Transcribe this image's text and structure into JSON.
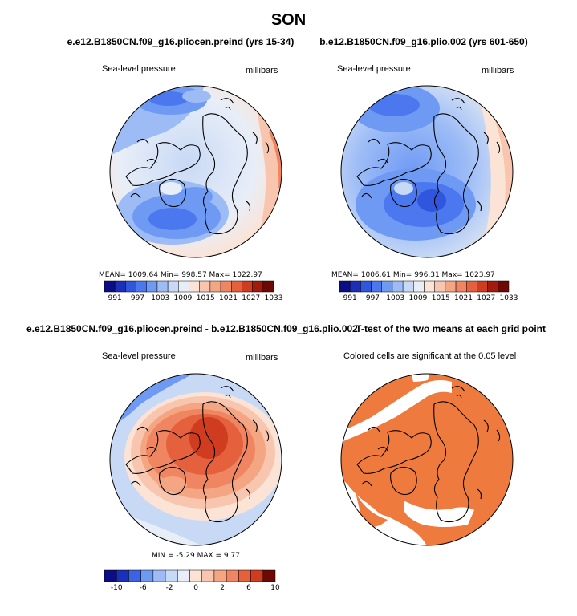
{
  "page_title": "SON",
  "panels": [
    {
      "title": "e.e12.B1850CN.f09_g16.pliocen.preind (yrs 15-34)",
      "variable": "Sea-level pressure",
      "units": "millibars",
      "stats": "MEAN= 1009.64   Min= 998.57   Max= 1022.97",
      "colorbar_labels": [
        "991",
        "997",
        "1003",
        "1009",
        "1015",
        "1021",
        "1027",
        "1033"
      ]
    },
    {
      "title": "b.e12.B1850CN.f09_g16.plio.002 (yrs 601-650)",
      "variable": "Sea-level pressure",
      "units": "millibars",
      "stats": "MEAN= 1006.61   Min= 996.31   Max= 1023.97",
      "colorbar_labels": [
        "991",
        "997",
        "1003",
        "1009",
        "1015",
        "1021",
        "1027",
        "1033"
      ]
    },
    {
      "title": "e.e12.B1850CN.f09_g16.pliocen.preind - b.e12.B1850CN.f09_g16.plio.002",
      "variable": "Sea-level pressure",
      "units": "millibars",
      "stats": "MIN =  -5.29  MAX =  9.77",
      "colorbar_labels": [
        "-10",
        "-6",
        "-2",
        "0",
        "2",
        "6",
        "10"
      ]
    },
    {
      "title": "T-test of the two means at each grid point",
      "variable": "Colored cells are significant at the 0.05 level"
    }
  ],
  "colors": {
    "abs_scale": [
      "#0b0d84",
      "#1c2fb8",
      "#2f56dc",
      "#4b78ee",
      "#6f9af4",
      "#9dbcf6",
      "#c8d9f5",
      "#e8eef8",
      "#fbe3d6",
      "#f8c6ae",
      "#f4a582",
      "#ef8561",
      "#e5613d",
      "#cf3c1f",
      "#a21b0d",
      "#6d0905"
    ],
    "diff_scale": [
      "#0b0d84",
      "#1c2fb8",
      "#3b63e6",
      "#6f9af4",
      "#9dbcf6",
      "#c8d9f5",
      "#e8eef8",
      "#fbe3d6",
      "#f8c6ae",
      "#f4a582",
      "#ef8561",
      "#e5613d",
      "#cf3c1f",
      "#6d0905"
    ],
    "significance": "#ef7a3d"
  }
}
